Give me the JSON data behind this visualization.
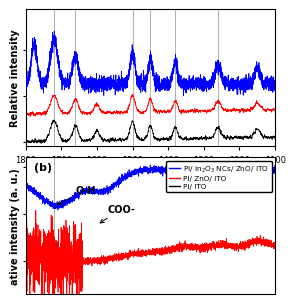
{
  "xmin": 1100,
  "xmax": 1800,
  "vertical_lines_a": [
    1720,
    1660,
    1500,
    1450,
    1380,
    1260
  ],
  "vertical_lines_b": [
    1720
  ],
  "panel_a_ylabel": "Relative intensity",
  "panel_b_ylabel": "ative intensity (a. u.)",
  "panel_a_xticks": [
    1800,
    1700,
    1600,
    1500,
    1400,
    1300,
    1200,
    1100
  ],
  "legend_labels": [
    "PI/ In₂O₃ NCs/ ZnO/ ITO",
    "PI/ ZnO/ ITO",
    "PI/ ITO"
  ],
  "legend_colors": [
    "blue",
    "red",
    "black"
  ]
}
